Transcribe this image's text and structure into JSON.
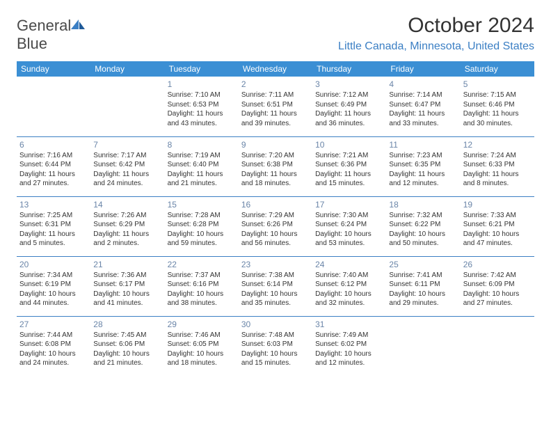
{
  "brand": {
    "part1": "General",
    "part2": "Blue"
  },
  "title": "October 2024",
  "location": "Little Canada, Minnesota, United States",
  "colors": {
    "header_bg": "#3b8fd4",
    "accent": "#3b7fc4",
    "text": "#333333",
    "daynum": "#6a85a8"
  },
  "day_labels": [
    "Sunday",
    "Monday",
    "Tuesday",
    "Wednesday",
    "Thursday",
    "Friday",
    "Saturday"
  ],
  "weeks": [
    [
      null,
      null,
      {
        "n": "1",
        "sr": "Sunrise: 7:10 AM",
        "ss": "Sunset: 6:53 PM",
        "dl": "Daylight: 11 hours and 43 minutes."
      },
      {
        "n": "2",
        "sr": "Sunrise: 7:11 AM",
        "ss": "Sunset: 6:51 PM",
        "dl": "Daylight: 11 hours and 39 minutes."
      },
      {
        "n": "3",
        "sr": "Sunrise: 7:12 AM",
        "ss": "Sunset: 6:49 PM",
        "dl": "Daylight: 11 hours and 36 minutes."
      },
      {
        "n": "4",
        "sr": "Sunrise: 7:14 AM",
        "ss": "Sunset: 6:47 PM",
        "dl": "Daylight: 11 hours and 33 minutes."
      },
      {
        "n": "5",
        "sr": "Sunrise: 7:15 AM",
        "ss": "Sunset: 6:46 PM",
        "dl": "Daylight: 11 hours and 30 minutes."
      }
    ],
    [
      {
        "n": "6",
        "sr": "Sunrise: 7:16 AM",
        "ss": "Sunset: 6:44 PM",
        "dl": "Daylight: 11 hours and 27 minutes."
      },
      {
        "n": "7",
        "sr": "Sunrise: 7:17 AM",
        "ss": "Sunset: 6:42 PM",
        "dl": "Daylight: 11 hours and 24 minutes."
      },
      {
        "n": "8",
        "sr": "Sunrise: 7:19 AM",
        "ss": "Sunset: 6:40 PM",
        "dl": "Daylight: 11 hours and 21 minutes."
      },
      {
        "n": "9",
        "sr": "Sunrise: 7:20 AM",
        "ss": "Sunset: 6:38 PM",
        "dl": "Daylight: 11 hours and 18 minutes."
      },
      {
        "n": "10",
        "sr": "Sunrise: 7:21 AM",
        "ss": "Sunset: 6:36 PM",
        "dl": "Daylight: 11 hours and 15 minutes."
      },
      {
        "n": "11",
        "sr": "Sunrise: 7:23 AM",
        "ss": "Sunset: 6:35 PM",
        "dl": "Daylight: 11 hours and 12 minutes."
      },
      {
        "n": "12",
        "sr": "Sunrise: 7:24 AM",
        "ss": "Sunset: 6:33 PM",
        "dl": "Daylight: 11 hours and 8 minutes."
      }
    ],
    [
      {
        "n": "13",
        "sr": "Sunrise: 7:25 AM",
        "ss": "Sunset: 6:31 PM",
        "dl": "Daylight: 11 hours and 5 minutes."
      },
      {
        "n": "14",
        "sr": "Sunrise: 7:26 AM",
        "ss": "Sunset: 6:29 PM",
        "dl": "Daylight: 11 hours and 2 minutes."
      },
      {
        "n": "15",
        "sr": "Sunrise: 7:28 AM",
        "ss": "Sunset: 6:28 PM",
        "dl": "Daylight: 10 hours and 59 minutes."
      },
      {
        "n": "16",
        "sr": "Sunrise: 7:29 AM",
        "ss": "Sunset: 6:26 PM",
        "dl": "Daylight: 10 hours and 56 minutes."
      },
      {
        "n": "17",
        "sr": "Sunrise: 7:30 AM",
        "ss": "Sunset: 6:24 PM",
        "dl": "Daylight: 10 hours and 53 minutes."
      },
      {
        "n": "18",
        "sr": "Sunrise: 7:32 AM",
        "ss": "Sunset: 6:22 PM",
        "dl": "Daylight: 10 hours and 50 minutes."
      },
      {
        "n": "19",
        "sr": "Sunrise: 7:33 AM",
        "ss": "Sunset: 6:21 PM",
        "dl": "Daylight: 10 hours and 47 minutes."
      }
    ],
    [
      {
        "n": "20",
        "sr": "Sunrise: 7:34 AM",
        "ss": "Sunset: 6:19 PM",
        "dl": "Daylight: 10 hours and 44 minutes."
      },
      {
        "n": "21",
        "sr": "Sunrise: 7:36 AM",
        "ss": "Sunset: 6:17 PM",
        "dl": "Daylight: 10 hours and 41 minutes."
      },
      {
        "n": "22",
        "sr": "Sunrise: 7:37 AM",
        "ss": "Sunset: 6:16 PM",
        "dl": "Daylight: 10 hours and 38 minutes."
      },
      {
        "n": "23",
        "sr": "Sunrise: 7:38 AM",
        "ss": "Sunset: 6:14 PM",
        "dl": "Daylight: 10 hours and 35 minutes."
      },
      {
        "n": "24",
        "sr": "Sunrise: 7:40 AM",
        "ss": "Sunset: 6:12 PM",
        "dl": "Daylight: 10 hours and 32 minutes."
      },
      {
        "n": "25",
        "sr": "Sunrise: 7:41 AM",
        "ss": "Sunset: 6:11 PM",
        "dl": "Daylight: 10 hours and 29 minutes."
      },
      {
        "n": "26",
        "sr": "Sunrise: 7:42 AM",
        "ss": "Sunset: 6:09 PM",
        "dl": "Daylight: 10 hours and 27 minutes."
      }
    ],
    [
      {
        "n": "27",
        "sr": "Sunrise: 7:44 AM",
        "ss": "Sunset: 6:08 PM",
        "dl": "Daylight: 10 hours and 24 minutes."
      },
      {
        "n": "28",
        "sr": "Sunrise: 7:45 AM",
        "ss": "Sunset: 6:06 PM",
        "dl": "Daylight: 10 hours and 21 minutes."
      },
      {
        "n": "29",
        "sr": "Sunrise: 7:46 AM",
        "ss": "Sunset: 6:05 PM",
        "dl": "Daylight: 10 hours and 18 minutes."
      },
      {
        "n": "30",
        "sr": "Sunrise: 7:48 AM",
        "ss": "Sunset: 6:03 PM",
        "dl": "Daylight: 10 hours and 15 minutes."
      },
      {
        "n": "31",
        "sr": "Sunrise: 7:49 AM",
        "ss": "Sunset: 6:02 PM",
        "dl": "Daylight: 10 hours and 12 minutes."
      },
      null,
      null
    ]
  ]
}
